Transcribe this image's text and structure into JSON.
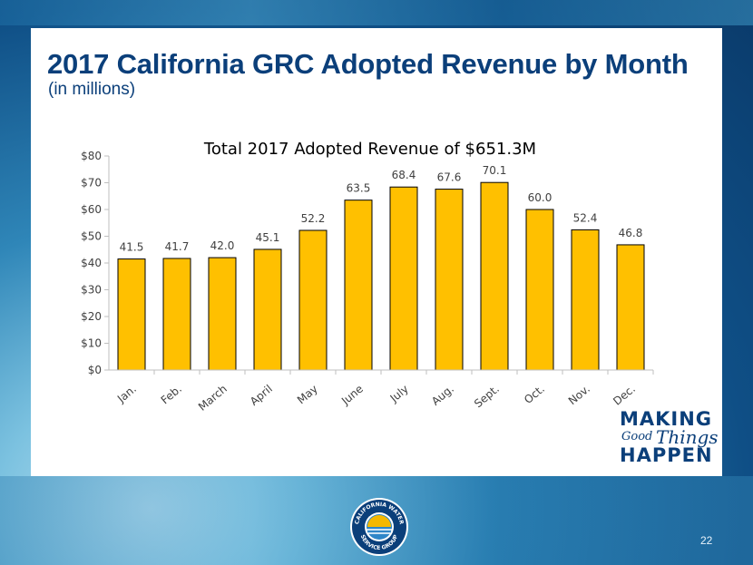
{
  "slide": {
    "title": "2017 California GRC Adopted Revenue by Month",
    "subtitle": "(in millions)",
    "page_number": "22"
  },
  "brand": {
    "line1": "MAKING",
    "line2a": "Good",
    "line2b": "Things",
    "line3": "HAPPEN"
  },
  "seal": {
    "text_top": "CALIFORNIA WATER",
    "text_bottom": "SERVICE GROUP"
  },
  "colors": {
    "bar": "#FFC000",
    "title": "#0b3f7a",
    "axis": "#bfbfbf"
  },
  "chart_data": {
    "type": "bar",
    "title": "Total 2017 Adopted Revenue of $651.3M",
    "categories": [
      "Jan.",
      "Feb.",
      "March",
      "April",
      "May",
      "June",
      "July",
      "Aug.",
      "Sept.",
      "Oct.",
      "Nov.",
      "Dec."
    ],
    "values": [
      41.5,
      41.7,
      42.0,
      45.1,
      52.2,
      63.5,
      68.4,
      67.6,
      70.1,
      60.0,
      52.4,
      46.8
    ],
    "value_labels": [
      "41.5",
      "41.7",
      "42.0",
      "45.1",
      "52.2",
      "63.5",
      "68.4",
      "67.6",
      "70.1",
      "60.0",
      "52.4",
      "46.8"
    ],
    "y_ticks": [
      0,
      10,
      20,
      30,
      40,
      50,
      60,
      70,
      80
    ],
    "y_tick_labels": [
      "$0",
      "$10",
      "$20",
      "$30",
      "$40",
      "$50",
      "$60",
      "$70",
      "$80"
    ],
    "ylim": [
      0,
      80
    ],
    "xlabel": "",
    "ylabel": "",
    "grid": false,
    "legend": "none"
  }
}
